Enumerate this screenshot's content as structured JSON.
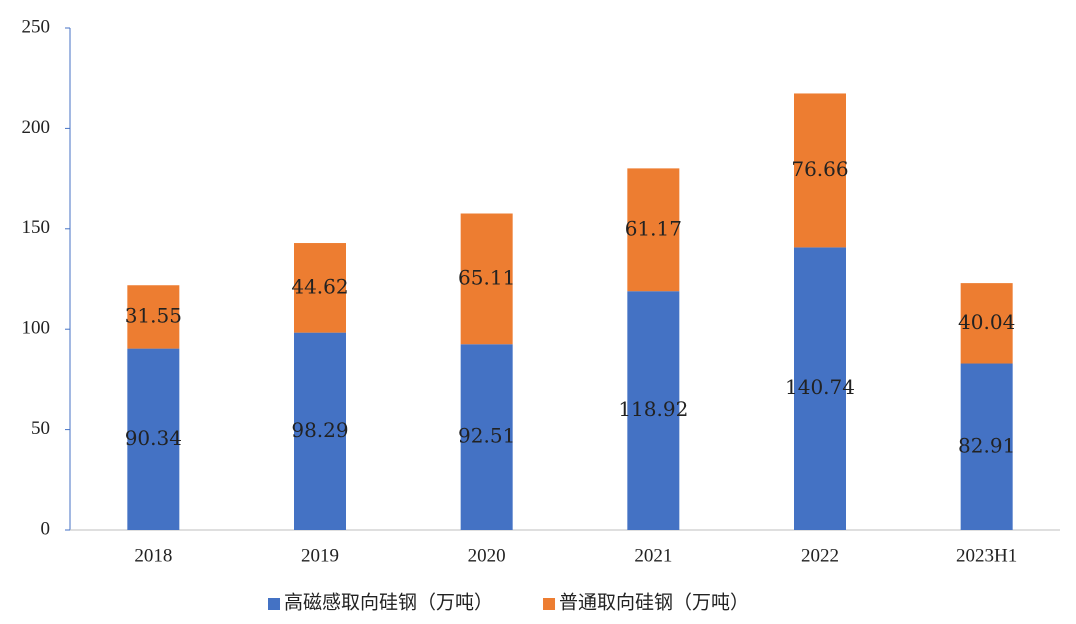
{
  "chart_data": {
    "type": "stacked_bar",
    "categories": [
      "2018",
      "2019",
      "2020",
      "2021",
      "2022",
      "2023H1"
    ],
    "series": [
      {
        "name": "高磁感取向硅钢（万吨）",
        "color": "#4472c4",
        "values": [
          90.34,
          98.29,
          92.51,
          118.92,
          140.74,
          82.91
        ]
      },
      {
        "name": "普通取向硅钢（万吨）",
        "color": "#ed7d31",
        "values": [
          31.55,
          44.62,
          65.11,
          61.17,
          76.66,
          40.04
        ]
      }
    ],
    "ylim": [
      0,
      250
    ],
    "yticks": [
      0,
      50,
      100,
      150,
      200,
      250
    ],
    "grid": false,
    "legend": "bottom"
  }
}
